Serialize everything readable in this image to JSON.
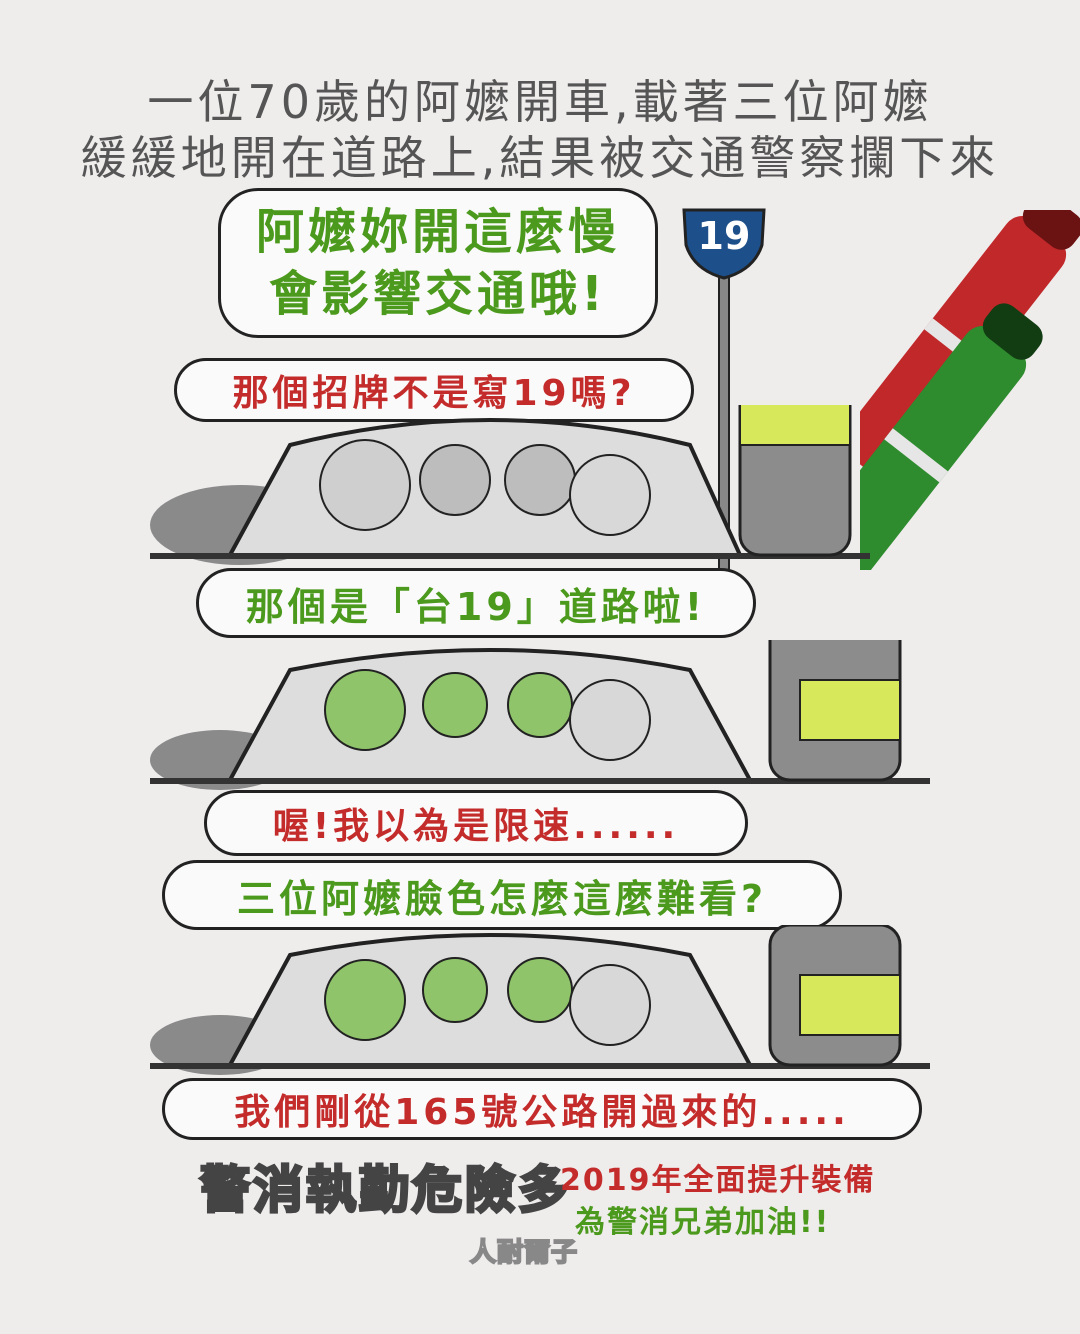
{
  "intro": {
    "line1": "一位70歲的阿嬤開車,載著三位阿嬤",
    "line2": "緩緩地開在道路上,結果被交通警察攔下來"
  },
  "sign": {
    "number": "19"
  },
  "bubbles": {
    "police1": {
      "line1": "阿嬤妳開這麼慢",
      "line2": "會影響交通哦!"
    },
    "grandma1": "那個招牌不是寫19嗎?",
    "police2": "那個是「台19」道路啦!",
    "grandma2": "喔!我以為是限速......",
    "police3": "三位阿嬤臉色怎麼這麼難看?",
    "grandma3": "我們剛從165號公路開過來的....."
  },
  "footer": {
    "slogan": "警消執勤危險多",
    "note1": "2019年全面提升裝備",
    "note2": "為警消兄弟加油!!",
    "watermark": "人耐爾子"
  },
  "colors": {
    "police_text": "#4c9a1d",
    "grandma_text": "#c42b2b",
    "marker_red": "#c0282a",
    "marker_green": "#2e8b2e",
    "sign_blue": "#1d4f8a"
  }
}
